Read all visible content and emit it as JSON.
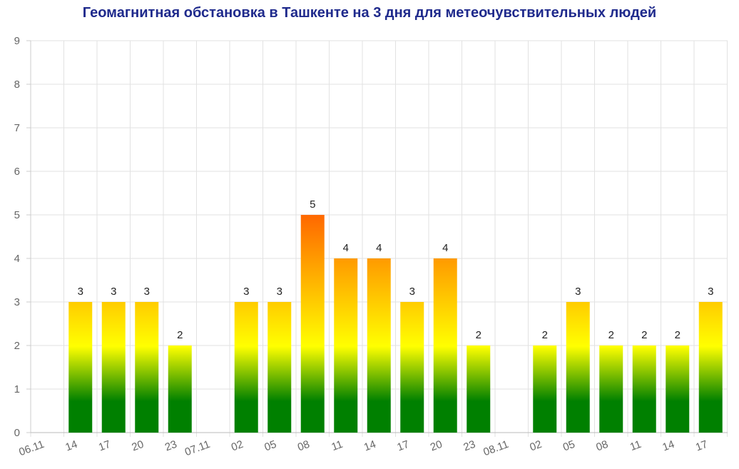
{
  "chart_data": {
    "type": "bar",
    "title": "Геомагнитная обстановка в Ташкенте на 3 дня для метеочувствительных людей",
    "xlabel": "",
    "ylabel": "",
    "ylim": [
      0,
      9
    ],
    "yticks": [
      "0",
      "1",
      "2",
      "3",
      "4",
      "5",
      "6",
      "7",
      "8",
      "9"
    ],
    "grid": true,
    "legend": "none",
    "categories": [
      "06.11",
      "14",
      "17",
      "20",
      "23",
      "07.11",
      "02",
      "05",
      "08",
      "11",
      "14",
      "17",
      "20",
      "23",
      "08.11",
      "02",
      "05",
      "08",
      "11",
      "14",
      "17"
    ],
    "values": [
      null,
      3,
      3,
      3,
      2,
      null,
      3,
      3,
      5,
      4,
      4,
      3,
      4,
      2,
      null,
      2,
      3,
      2,
      2,
      2,
      3
    ],
    "data_labels": [
      "",
      "3",
      "3",
      "3",
      "2",
      "",
      "3",
      "3",
      "5",
      "4",
      "4",
      "3",
      "4",
      "2",
      "",
      "2",
      "3",
      "2",
      "2",
      "2",
      "3"
    ],
    "gradient_colors": {
      "low": "#008000",
      "mid": "#ffff00",
      "high": "#ff4000"
    },
    "title_color": "#1f2a8c"
  }
}
